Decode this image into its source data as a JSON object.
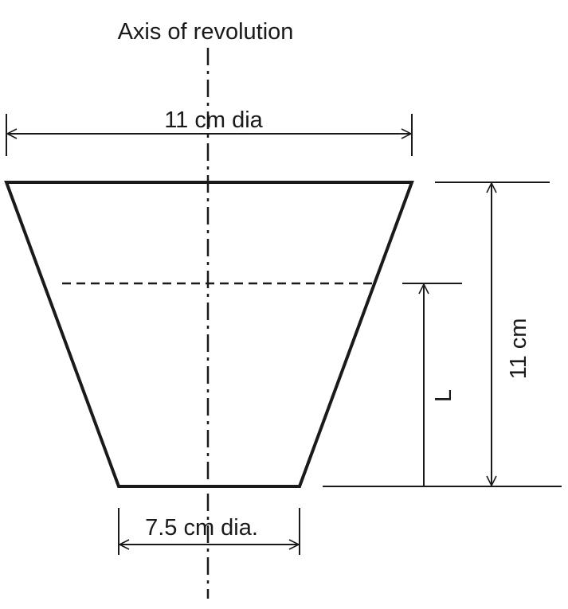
{
  "labels": {
    "axis": "Axis of revolution",
    "top_diameter": "11 cm dia",
    "bottom_diameter": "7.5 cm dia.",
    "height": "11 cm",
    "fill_level": "L"
  },
  "colors": {
    "line": "#1a1a1a",
    "background": "#ffffff"
  }
}
